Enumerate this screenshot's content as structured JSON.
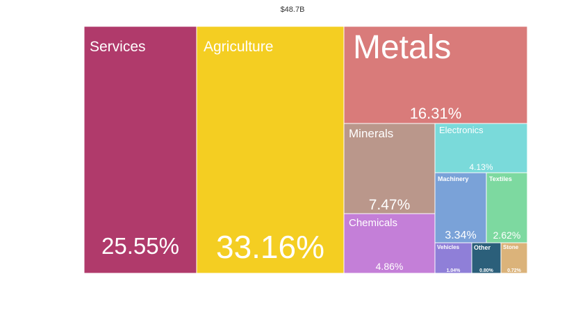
{
  "chart_data": {
    "type": "treemap",
    "title": "$48.7B",
    "tiles": [
      {
        "name": "Services",
        "label": "25.55%",
        "value": 25.55,
        "color": "#b03a6b"
      },
      {
        "name": "Agriculture",
        "label": "33.16%",
        "value": 33.16,
        "color": "#f4ce22"
      },
      {
        "name": "Metals",
        "label": "16.31%",
        "value": 16.31,
        "color": "#d97b7a"
      },
      {
        "name": "Minerals",
        "label": "7.47%",
        "value": 7.47,
        "color": "#ba978b"
      },
      {
        "name": "Electronics",
        "label": "4.13%",
        "value": 4.13,
        "color": "#7adada"
      },
      {
        "name": "Chemicals",
        "label": "4.86%",
        "value": 4.86,
        "color": "#c47fd8"
      },
      {
        "name": "Machinery",
        "label": "3.34%",
        "value": 3.34,
        "color": "#7aa2d8"
      },
      {
        "name": "Textiles",
        "label": "2.62%",
        "value": 2.62,
        "color": "#7dd9a0"
      },
      {
        "name": "Vehicles",
        "label": "1.04%",
        "value": 1.04,
        "color": "#8f7fd8"
      },
      {
        "name": "Other",
        "label": "0.80%",
        "value": 0.8,
        "color": "#2b5f7a"
      },
      {
        "name": "Stone",
        "label": "0.72%",
        "value": 0.72,
        "color": "#dbb37a"
      }
    ]
  }
}
